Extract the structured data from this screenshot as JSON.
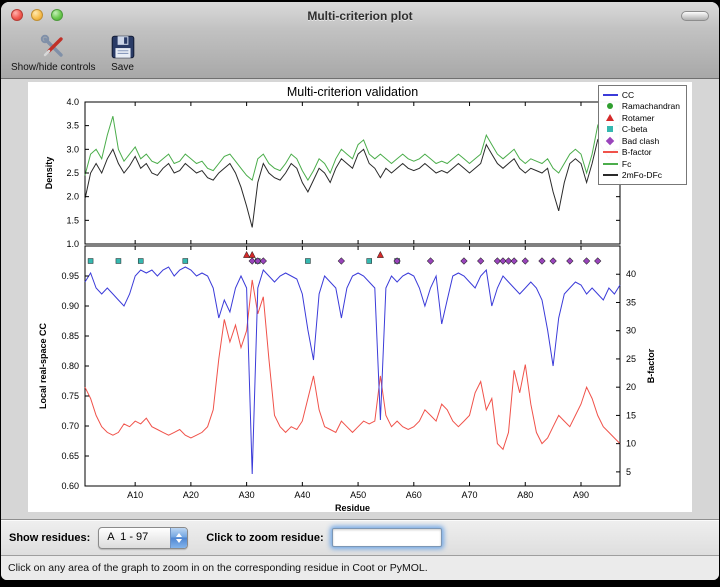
{
  "window": {
    "title": "Multi-criterion plot"
  },
  "toolbar": {
    "buttons": [
      {
        "label": "Show/hide controls",
        "icon": "tools-icon"
      },
      {
        "label": "Save",
        "icon": "save-icon"
      }
    ]
  },
  "controls": {
    "show_residues_label": "Show residues:",
    "residue_range_value": "A  1 - 97",
    "zoom_label": "Click to zoom residue:",
    "zoom_input_value": ""
  },
  "statusbar": {
    "text": "Click on any area of the graph to zoom in on the corresponding residue in Coot or PyMOL."
  },
  "legend": {
    "items": [
      {
        "label": "CC",
        "symbol": "line",
        "color": "#3b3bd9"
      },
      {
        "label": "Ramachandran",
        "symbol": "circle",
        "color": "#2f9e2f"
      },
      {
        "label": "Rotamer",
        "symbol": "triangle",
        "color": "#d42a2a"
      },
      {
        "label": "C-beta",
        "symbol": "square",
        "color": "#35b8b0"
      },
      {
        "label": "Bad clash",
        "symbol": "diamond",
        "color": "#9944bb"
      },
      {
        "label": "B-factor",
        "symbol": "line",
        "color": "#f0524a"
      },
      {
        "label": "Fc",
        "symbol": "line",
        "color": "#4bad4b"
      },
      {
        "label": "2mFo-DFc",
        "symbol": "line",
        "color": "#2a2a2a"
      }
    ]
  },
  "chart_data": [
    {
      "type": "line",
      "title": "Multi-criterion validation",
      "subplot": "density",
      "ylabel": "Density",
      "ylim": [
        1.0,
        4.0
      ],
      "yticks": {
        "values": [
          1.0,
          1.5,
          2.0,
          2.5,
          3.0,
          3.5,
          4.0
        ],
        "labels": [
          "1.0",
          "1.5",
          "2.0",
          "2.5",
          "3.0",
          "3.5",
          "4.0"
        ]
      },
      "x_range": [
        1,
        97
      ],
      "series": [
        {
          "name": "Fc",
          "color": "#4bad4b",
          "values": [
            2.45,
            2.9,
            3.0,
            2.8,
            3.3,
            3.7,
            3.0,
            2.75,
            2.9,
            3.05,
            2.8,
            2.9,
            2.75,
            2.7,
            2.8,
            2.9,
            2.7,
            2.75,
            2.9,
            2.8,
            2.7,
            2.75,
            2.6,
            2.55,
            2.7,
            2.85,
            2.9,
            2.75,
            2.6,
            2.45,
            2.35,
            2.8,
            2.9,
            2.7,
            2.6,
            2.55,
            2.7,
            2.9,
            2.8,
            2.55,
            2.35,
            2.55,
            2.8,
            2.7,
            2.5,
            2.8,
            3.0,
            2.9,
            2.8,
            3.1,
            3.2,
            2.9,
            2.8,
            2.9,
            2.8,
            2.7,
            2.8,
            2.9,
            2.8,
            2.75,
            2.8,
            2.9,
            2.8,
            2.7,
            2.75,
            2.7,
            2.8,
            2.9,
            2.8,
            2.7,
            2.8,
            2.9,
            3.3,
            3.1,
            2.9,
            2.8,
            2.9,
            3.0,
            2.8,
            2.7,
            2.8,
            2.75,
            2.7,
            2.8,
            2.6,
            2.5,
            2.7,
            2.9,
            3.0,
            2.9,
            2.5,
            2.9,
            3.5,
            3.2,
            3.0,
            3.3,
            3.35
          ]
        },
        {
          "name": "2mFo-DFc",
          "color": "#2a2a2a",
          "values": [
            1.95,
            2.5,
            2.7,
            2.5,
            2.8,
            3.0,
            2.7,
            2.5,
            2.65,
            2.85,
            2.6,
            2.7,
            2.5,
            2.45,
            2.6,
            2.7,
            2.5,
            2.55,
            2.7,
            2.6,
            2.5,
            2.55,
            2.4,
            2.35,
            2.5,
            2.6,
            2.7,
            2.5,
            2.2,
            1.8,
            1.35,
            2.3,
            2.7,
            2.5,
            2.4,
            2.35,
            2.5,
            2.7,
            2.6,
            2.3,
            2.1,
            2.35,
            2.6,
            2.5,
            2.3,
            2.6,
            2.8,
            2.7,
            2.6,
            2.9,
            3.0,
            2.7,
            2.6,
            2.4,
            2.6,
            2.5,
            2.6,
            2.7,
            2.6,
            2.55,
            2.6,
            2.7,
            2.6,
            2.5,
            2.55,
            2.5,
            2.6,
            2.7,
            2.6,
            2.5,
            2.6,
            2.7,
            3.1,
            2.9,
            2.7,
            2.6,
            2.7,
            2.8,
            2.6,
            2.5,
            2.6,
            2.55,
            2.5,
            2.6,
            2.1,
            1.7,
            2.3,
            2.7,
            2.8,
            2.7,
            2.3,
            2.7,
            3.2,
            3.0,
            2.8,
            3.0,
            2.9
          ]
        }
      ]
    },
    {
      "type": "line",
      "subplot": "cc-bfactor",
      "xlabel": "Residue",
      "xticks": {
        "values": [
          10,
          20,
          30,
          40,
          50,
          60,
          70,
          80,
          90
        ],
        "labels": [
          "A10",
          "A20",
          "A30",
          "A40",
          "A50",
          "A60",
          "A70",
          "A80",
          "A90"
        ]
      },
      "ylabel_left": "Local real-space CC",
      "ylim_left": [
        0.6,
        1.0
      ],
      "yticks_left": {
        "values": [
          0.6,
          0.65,
          0.7,
          0.75,
          0.8,
          0.85,
          0.9,
          0.95
        ],
        "labels": [
          "0.60",
          "0.65",
          "0.70",
          "0.75",
          "0.80",
          "0.85",
          "0.90",
          "0.95"
        ]
      },
      "ylabel_right": "B-factor",
      "ylim_right": [
        2.5,
        45
      ],
      "yticks_right": {
        "values": [
          5,
          10,
          15,
          20,
          25,
          30,
          35,
          40
        ],
        "labels": [
          "5",
          "10",
          "15",
          "20",
          "25",
          "30",
          "35",
          "40"
        ]
      },
      "x_range": [
        1,
        97
      ],
      "series": [
        {
          "name": "CC",
          "axis": "left",
          "color": "#3b3bd9",
          "values": [
            0.94,
            0.955,
            0.93,
            0.92,
            0.93,
            0.92,
            0.91,
            0.9,
            0.92,
            0.95,
            0.96,
            0.955,
            0.96,
            0.95,
            0.96,
            0.965,
            0.95,
            0.96,
            0.965,
            0.96,
            0.95,
            0.955,
            0.95,
            0.93,
            0.88,
            0.91,
            0.89,
            0.93,
            0.95,
            0.93,
            0.62,
            0.93,
            0.96,
            0.95,
            0.94,
            0.95,
            0.955,
            0.95,
            0.945,
            0.92,
            0.86,
            0.81,
            0.92,
            0.95,
            0.94,
            0.93,
            0.88,
            0.93,
            0.95,
            0.955,
            0.95,
            0.94,
            0.93,
            0.71,
            0.93,
            0.95,
            0.94,
            0.95,
            0.955,
            0.95,
            0.93,
            0.9,
            0.93,
            0.95,
            0.87,
            0.91,
            0.95,
            0.955,
            0.95,
            0.94,
            0.93,
            0.95,
            0.96,
            0.9,
            0.93,
            0.95,
            0.94,
            0.93,
            0.92,
            0.93,
            0.94,
            0.93,
            0.91,
            0.86,
            0.8,
            0.88,
            0.92,
            0.93,
            0.94,
            0.935,
            0.92,
            0.93,
            0.92,
            0.91,
            0.93,
            0.92,
            0.935
          ]
        },
        {
          "name": "B-factor",
          "axis": "right",
          "color": "#f0524a",
          "values": [
            20,
            18,
            15,
            13,
            12,
            11.5,
            12,
            13.5,
            13,
            14,
            13.5,
            14.5,
            13,
            12.5,
            12,
            11.5,
            12,
            12.5,
            11.5,
            11,
            11.5,
            12,
            13,
            16,
            25,
            32,
            28,
            31,
            27,
            30,
            39,
            33,
            36,
            25,
            15,
            13,
            12,
            13,
            12.5,
            14,
            18,
            22,
            16,
            13,
            12.5,
            12,
            14,
            13,
            12,
            13,
            14,
            13.5,
            14,
            22,
            15,
            13,
            14,
            13,
            12.5,
            13,
            14,
            16,
            15,
            14,
            17,
            16,
            14,
            13,
            14,
            15,
            19,
            21,
            16,
            18,
            10,
            9,
            12,
            23,
            19,
            24,
            17,
            12,
            10,
            11,
            13,
            15,
            14,
            13,
            15,
            17,
            20,
            18,
            15,
            13,
            12,
            11,
            10
          ]
        }
      ],
      "markers": [
        {
          "name": "Ramachandran",
          "shape": "circle",
          "color": "#2f9e2f",
          "y": 0.975,
          "residues": []
        },
        {
          "name": "Rotamer",
          "shape": "triangle",
          "color": "#d42a2a",
          "y": 0.985,
          "residues": [
            30,
            31,
            54
          ]
        },
        {
          "name": "C-beta",
          "shape": "square",
          "color": "#35b8b0",
          "y": 0.975,
          "residues": [
            2,
            7,
            11,
            19,
            32,
            41,
            52,
            57
          ]
        },
        {
          "name": "Bad clash",
          "shape": "diamond",
          "color": "#9944bb",
          "y": 0.975,
          "residues": [
            31,
            32,
            33,
            47,
            57,
            63,
            69,
            72,
            75,
            76,
            77,
            78,
            80,
            83,
            85,
            88,
            91,
            93
          ]
        }
      ]
    }
  ]
}
